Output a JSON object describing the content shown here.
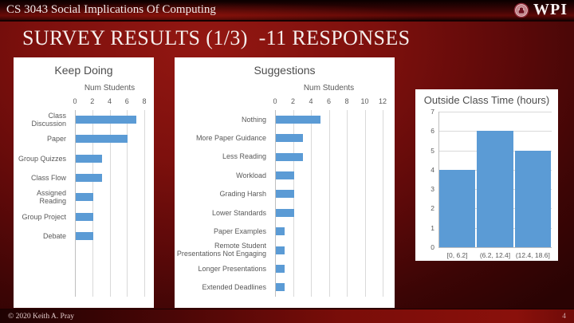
{
  "header": {
    "course_title": "CS 3043 Social Implications Of Computing",
    "logo_text": "WPI"
  },
  "slide_title": "SURVEY RESULTS (1/3)  -11 RESPONSES",
  "footer": {
    "copyright": "© 2020 Keith A. Pray",
    "page_number": "4"
  },
  "colors": {
    "bar_blue": "#5B9BD5",
    "chart_text": "#595959",
    "gridline": "#D9D9D9",
    "axis_line": "#BFBFBF",
    "panel_bg": "#FFFFFF"
  },
  "chart_data": [
    {
      "type": "bar",
      "orientation": "horizontal",
      "title": "Keep Doing",
      "value_axis_label": "Num Students",
      "categories": [
        "Class Discussion",
        "Paper",
        "Group Quizzes",
        "Class Flow",
        "Assigned Reading",
        "Group Project",
        "Debate"
      ],
      "values": [
        7,
        6,
        3,
        3,
        2,
        2,
        2
      ],
      "xlim": [
        0,
        8
      ],
      "ticks": [
        0,
        2,
        4,
        6,
        8
      ],
      "grid": true,
      "legend": false
    },
    {
      "type": "bar",
      "orientation": "horizontal",
      "title": "Suggestions",
      "value_axis_label": "Num Students",
      "categories": [
        "Nothing",
        "More Paper Guidance",
        "Less Reading",
        "Workload",
        "Grading Harsh",
        "Lower Standards",
        "Paper Examples",
        "Remote Student Presentations Not Engaging",
        "Longer Presentations",
        "Extended Deadlines"
      ],
      "values": [
        5,
        3,
        3,
        2,
        2,
        2,
        1,
        1,
        1,
        1
      ],
      "xlim": [
        0,
        12
      ],
      "ticks": [
        0,
        2,
        4,
        6,
        8,
        10,
        12
      ],
      "grid": true,
      "legend": false
    },
    {
      "type": "bar",
      "orientation": "vertical",
      "title": "Outside Class Time (hours)",
      "categories": [
        "[0, 6.2]",
        "(6.2, 12.4]",
        "(12.4, 18.6]"
      ],
      "values": [
        4,
        6,
        5
      ],
      "ylim": [
        0,
        7
      ],
      "ticks": [
        0,
        1,
        2,
        3,
        4,
        5,
        6,
        7
      ],
      "grid": true,
      "legend": false
    }
  ]
}
